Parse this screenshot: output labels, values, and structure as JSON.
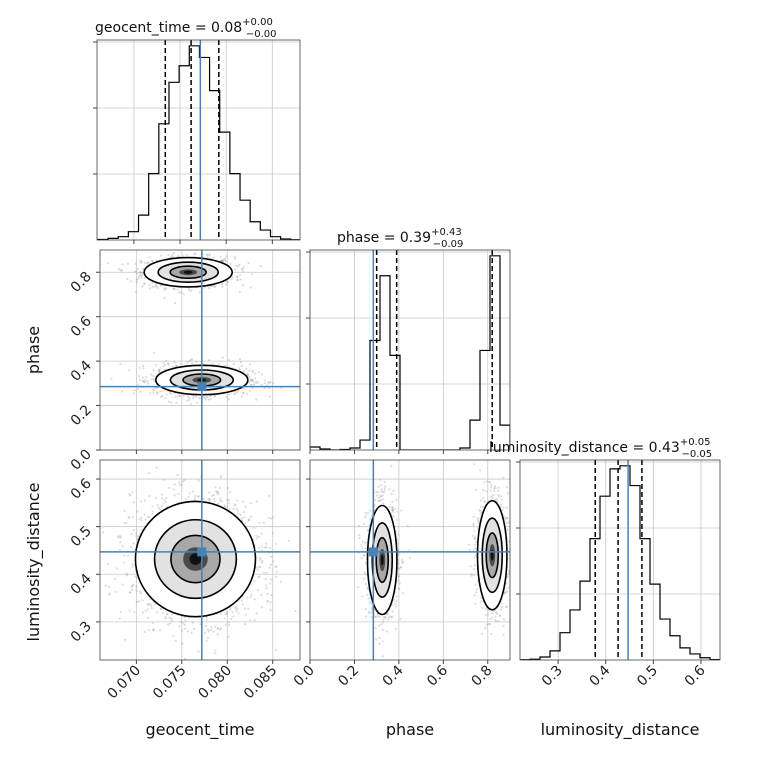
{
  "chart_data": {
    "type": "corner",
    "parameters": [
      "geocent_time",
      "phase",
      "luminosity_distance"
    ],
    "axis_labels": {
      "x": [
        "geocent_time",
        "phase",
        "luminosity_distance"
      ],
      "y": [
        "phase",
        "luminosity_distance"
      ]
    },
    "titles": [
      {
        "param": "geocent_time",
        "text": "geocent_time = 0.08",
        "plus": "+0.00",
        "minus": "−0.00"
      },
      {
        "param": "phase",
        "text": "phase = 0.39",
        "plus": "+0.43",
        "minus": "−0.09"
      },
      {
        "param": "luminosity_distance",
        "text": "luminosity_distance = 0.43",
        "plus": "+0.05",
        "minus": "−0.05"
      }
    ],
    "ranges": {
      "geocent_time": [
        0.066,
        0.088
      ],
      "phase": [
        0.0,
        0.9
      ],
      "luminosity_distance": [
        0.22,
        0.64
      ]
    },
    "ticks": {
      "geocent_time": {
        "values": [
          0.07,
          0.075,
          0.08,
          0.085
        ],
        "labels": [
          "0.070",
          "0.075",
          "0.080",
          "0.085"
        ]
      },
      "phase_x": {
        "values": [
          0.0,
          0.2,
          0.4,
          0.6,
          0.8
        ],
        "labels": [
          "0.0",
          "0.2",
          "0.4",
          "0.6",
          "0.8"
        ]
      },
      "phase_y": {
        "values": [
          0.0,
          0.2,
          0.4,
          0.6,
          0.8
        ],
        "labels": [
          "0.0",
          "0.2",
          "0.4",
          "0.6",
          "0.8"
        ]
      },
      "luminosity_distance": {
        "values": [
          0.3,
          0.4,
          0.5,
          0.6
        ],
        "labels": [
          "0.3",
          "0.4",
          "0.5",
          "0.6"
        ]
      }
    },
    "truths": {
      "geocent_time": 0.0772,
      "phase": 0.285,
      "luminosity_distance": 0.447
    },
    "quantiles": {
      "geocent_time": [
        0.0734,
        0.0762,
        0.0792
      ],
      "phase": [
        0.3,
        0.39,
        0.82
      ],
      "luminosity_distance": [
        0.378,
        0.426,
        0.476
      ]
    },
    "histograms": {
      "geocent_time": {
        "edges": [
          0.0661,
          0.0672,
          0.0683,
          0.0694,
          0.0705,
          0.0716,
          0.0727,
          0.0738,
          0.0749,
          0.076,
          0.0771,
          0.0782,
          0.0793,
          0.0804,
          0.0815,
          0.0826,
          0.0837,
          0.0848,
          0.0859,
          0.087,
          0.0881
        ],
        "counts": [
          0.3,
          1.0,
          2.0,
          5.0,
          15,
          40,
          70,
          95,
          105,
          117,
          110,
          90,
          65,
          40,
          24,
          11,
          6,
          2,
          0.6,
          0.2
        ]
      },
      "phase": {
        "edges": [
          0.0,
          0.045,
          0.09,
          0.135,
          0.18,
          0.225,
          0.27,
          0.315,
          0.36,
          0.405,
          0.45,
          0.495,
          0.54,
          0.585,
          0.63,
          0.675,
          0.72,
          0.765,
          0.81,
          0.855,
          0.9
        ],
        "counts": [
          3,
          1,
          0,
          0.5,
          2,
          10,
          110,
          175,
          95,
          0,
          0,
          0,
          0,
          0,
          0,
          2,
          30,
          100,
          195,
          25
        ]
      },
      "luminosity_distance": {
        "edges": [
          0.22,
          0.241,
          0.262,
          0.283,
          0.304,
          0.325,
          0.346,
          0.367,
          0.388,
          0.409,
          0.43,
          0.451,
          0.472,
          0.493,
          0.514,
          0.535,
          0.556,
          0.577,
          0.598,
          0.619,
          0.64
        ],
        "counts": [
          0.2,
          0.5,
          2,
          6,
          18,
          33,
          52,
          80,
          108,
          126,
          128,
          115,
          80,
          50,
          27,
          16,
          8,
          4,
          1.5,
          0.3
        ]
      }
    },
    "contour_panels": [
      {
        "x": "geocent_time",
        "y": "phase",
        "modes": [
          {
            "cx": 0.0757,
            "cy": 0.8,
            "sx": 0.0022,
            "sy": 0.03,
            "weight": 0.45
          },
          {
            "cx": 0.0772,
            "cy": 0.315,
            "sx": 0.0023,
            "sy": 0.03,
            "weight": 0.55
          }
        ]
      },
      {
        "x": "geocent_time",
        "y": "luminosity_distance",
        "modes": [
          {
            "cx": 0.0765,
            "cy": 0.432,
            "sx": 0.003,
            "sy": 0.055,
            "weight": 1.0
          }
        ]
      },
      {
        "x": "phase",
        "y": "luminosity_distance",
        "modes": [
          {
            "cx": 0.325,
            "cy": 0.43,
            "sx": 0.03,
            "sy": 0.052,
            "weight": 0.55
          },
          {
            "cx": 0.82,
            "cy": 0.44,
            "sx": 0.03,
            "sy": 0.052,
            "weight": 0.45
          }
        ]
      }
    ],
    "colors": {
      "truth": "#4682b4",
      "hist": "#000000",
      "grid": "#c8c8c8",
      "scatter": "#9a9a9a",
      "contour": "#000000"
    },
    "grid": true
  }
}
